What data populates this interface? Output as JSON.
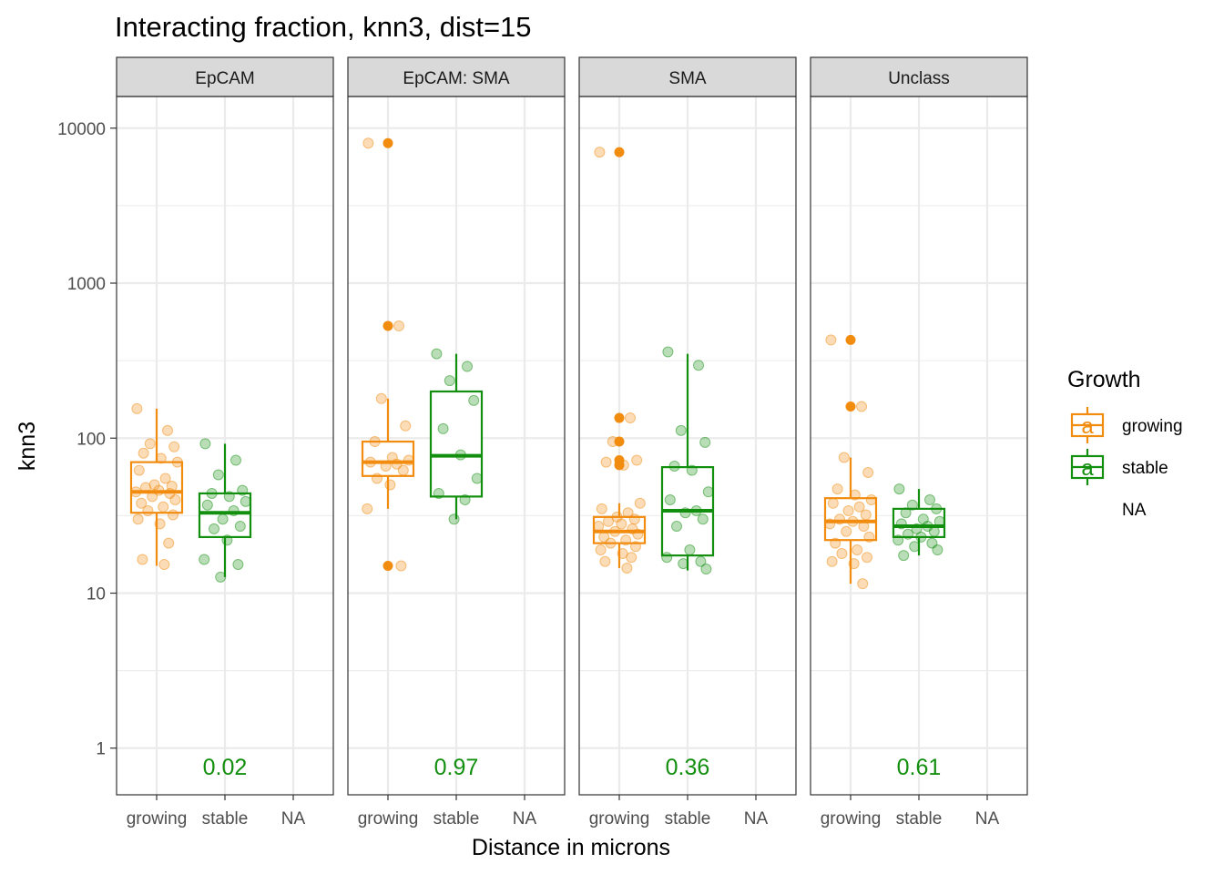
{
  "title": "Interacting fraction, knn3, dist=15",
  "colors": {
    "growing": "#F28C0F",
    "stable": "#138F0F",
    "strip_bg": "#D9D9D9",
    "grid": "#EBEBEB",
    "panel_border": "#333333",
    "pval": "#138F0F"
  },
  "chart_data": {
    "type": "boxplot",
    "title": "Interacting fraction, knn3, dist=15",
    "xlabel": "Distance in microns",
    "ylabel": "knn3",
    "y_scale": "log10",
    "ylim": [
      0.5,
      16000
    ],
    "y_ticks": [
      1,
      10,
      100,
      1000,
      10000
    ],
    "y_tick_labels": [
      "1",
      "10",
      "100",
      "1000",
      "10000"
    ],
    "categories": [
      "growing",
      "stable",
      "NA"
    ],
    "legend": {
      "title": "Growth",
      "entries": [
        "growing",
        "stable",
        "NA"
      ],
      "position": "right"
    },
    "panels": [
      {
        "name": "EpCAM",
        "pvalue": "0.02",
        "boxes": {
          "growing": {
            "min": 15,
            "q1": 33,
            "median": 45,
            "q3": 70,
            "max": 155
          },
          "stable": {
            "min": 12.7,
            "q1": 23,
            "median": 33,
            "q3": 44,
            "max": 92
          }
        },
        "outliers": {
          "growing": [],
          "stable": []
        },
        "points": {
          "growing": [
            155,
            112,
            92,
            88,
            80,
            74,
            70,
            62,
            55,
            50,
            49,
            48,
            46,
            45,
            44,
            42,
            40,
            38,
            36,
            34,
            32,
            30,
            28,
            21,
            16.5,
            15.3
          ],
          "stable": [
            92,
            72,
            58,
            46,
            44,
            42,
            39,
            37,
            34,
            30,
            27,
            26,
            22,
            16.5,
            15.3,
            12.7
          ]
        }
      },
      {
        "name": "EpCAM: SMA",
        "pvalue": "0.97",
        "boxes": {
          "growing": {
            "min": 35,
            "q1": 57,
            "median": 70,
            "q3": 95,
            "max": 180
          },
          "stable": {
            "min": 30,
            "q1": 42,
            "median": 77,
            "q3": 200,
            "max": 350
          }
        },
        "outliers": {
          "growing": [
            8000,
            530,
            15
          ],
          "stable": []
        },
        "points": {
          "growing": [
            8000,
            530,
            180,
            120,
            95,
            75,
            72,
            70,
            68,
            66,
            62,
            55,
            50,
            35,
            15
          ],
          "stable": [
            350,
            290,
            235,
            175,
            115,
            78,
            55,
            44,
            40,
            30
          ]
        }
      },
      {
        "name": "SMA",
        "pvalue": "0.36",
        "boxes": {
          "growing": {
            "min": 14.5,
            "q1": 21,
            "median": 25,
            "q3": 31,
            "max": 38
          },
          "stable": {
            "min": 14,
            "q1": 17.5,
            "median": 34,
            "q3": 65,
            "max": 350
          }
        },
        "outliers": {
          "growing": [
            7000,
            135,
            95,
            72,
            67
          ],
          "stable": []
        },
        "points": {
          "growing": [
            7000,
            135,
            95,
            72,
            70,
            67,
            38,
            35,
            33,
            31,
            30,
            29,
            28,
            27,
            26,
            25,
            24,
            23,
            22,
            21,
            20,
            19,
            18,
            17,
            16,
            14.5
          ],
          "stable": [
            360,
            295,
            112,
            94,
            66,
            62,
            45,
            40,
            34,
            33,
            30,
            27,
            19,
            17,
            16,
            15.5,
            14.3
          ]
        }
      },
      {
        "name": "Unclass",
        "pvalue": "0.61",
        "boxes": {
          "growing": {
            "min": 11.5,
            "q1": 22,
            "median": 29,
            "q3": 41,
            "max": 75
          },
          "stable": {
            "min": 17.5,
            "q1": 23,
            "median": 27,
            "q3": 35,
            "max": 47
          }
        },
        "outliers": {
          "growing": [
            430,
            160
          ],
          "stable": []
        },
        "points": {
          "growing": [
            430,
            160,
            75,
            60,
            47,
            43,
            40,
            38,
            36,
            34,
            32,
            30,
            29,
            28,
            27,
            25,
            23,
            21,
            19,
            18,
            17,
            16,
            15.5,
            11.5
          ],
          "stable": [
            47,
            40,
            37,
            35,
            33,
            30,
            29,
            28,
            27,
            26,
            25,
            24,
            23,
            22,
            21,
            20,
            19,
            17.5
          ]
        }
      }
    ]
  }
}
